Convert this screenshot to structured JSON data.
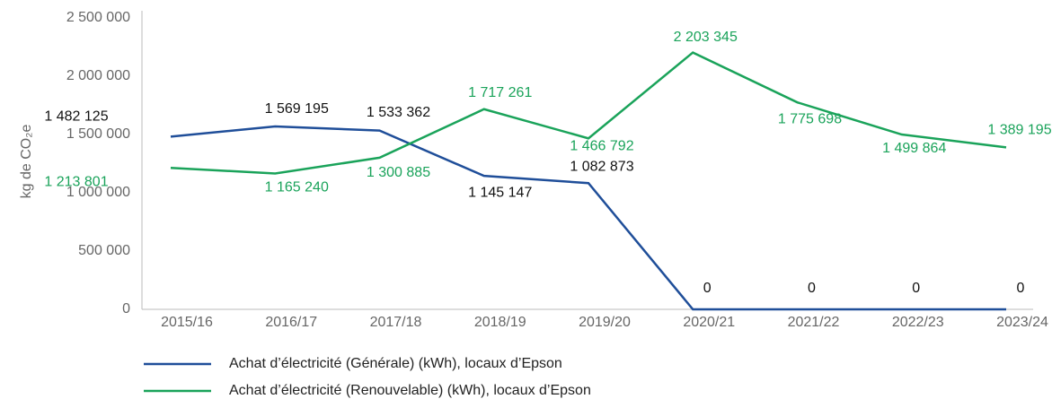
{
  "chart_data": {
    "type": "line",
    "y_label": "kg de CO₂e",
    "categories": [
      "2015/16",
      "2016/17",
      "2017/18",
      "2018/19",
      "2019/20",
      "2020/21",
      "2021/22",
      "2022/23",
      "2023/24"
    ],
    "series": [
      {
        "name": "Achat d’électricité (Générale) (kWh), locaux d’Epson",
        "color": "#1f4e99",
        "values": [
          1482125,
          1569195,
          1533362,
          1145147,
          1082873,
          0,
          0,
          0,
          0
        ],
        "value_labels": [
          "1 482 125",
          "1 569 195",
          "1 533 362",
          "1 145 147",
          "1 082 873",
          "0",
          "0",
          "0",
          "0"
        ]
      },
      {
        "name": "Achat d’électricité (Renouvelable) (kWh), locaux d’Epson",
        "color": "#1aa35a",
        "values": [
          1213801,
          1165240,
          1300885,
          1717261,
          1466792,
          2203345,
          1775698,
          1499864,
          1389195
        ],
        "value_labels": [
          "1 213 801",
          "1 165 240",
          "1 300 885",
          "1 717 261",
          "1 466 792",
          "2 203 345",
          "1 775 698",
          "1 499 864",
          "1 389 195"
        ]
      }
    ],
    "ylim": [
      0,
      2500000
    ],
    "yticks": [
      0,
      {
        "value": 500000,
        "label": "500 000"
      },
      {
        "value": 1000000,
        "label": "1 000 000"
      },
      {
        "value": 1500000,
        "label": "1 500 000"
      },
      {
        "value": 2000000,
        "label": "2 000 000"
      },
      {
        "value": 2500000,
        "label": "2 500 000"
      }
    ],
    "grid": false
  }
}
